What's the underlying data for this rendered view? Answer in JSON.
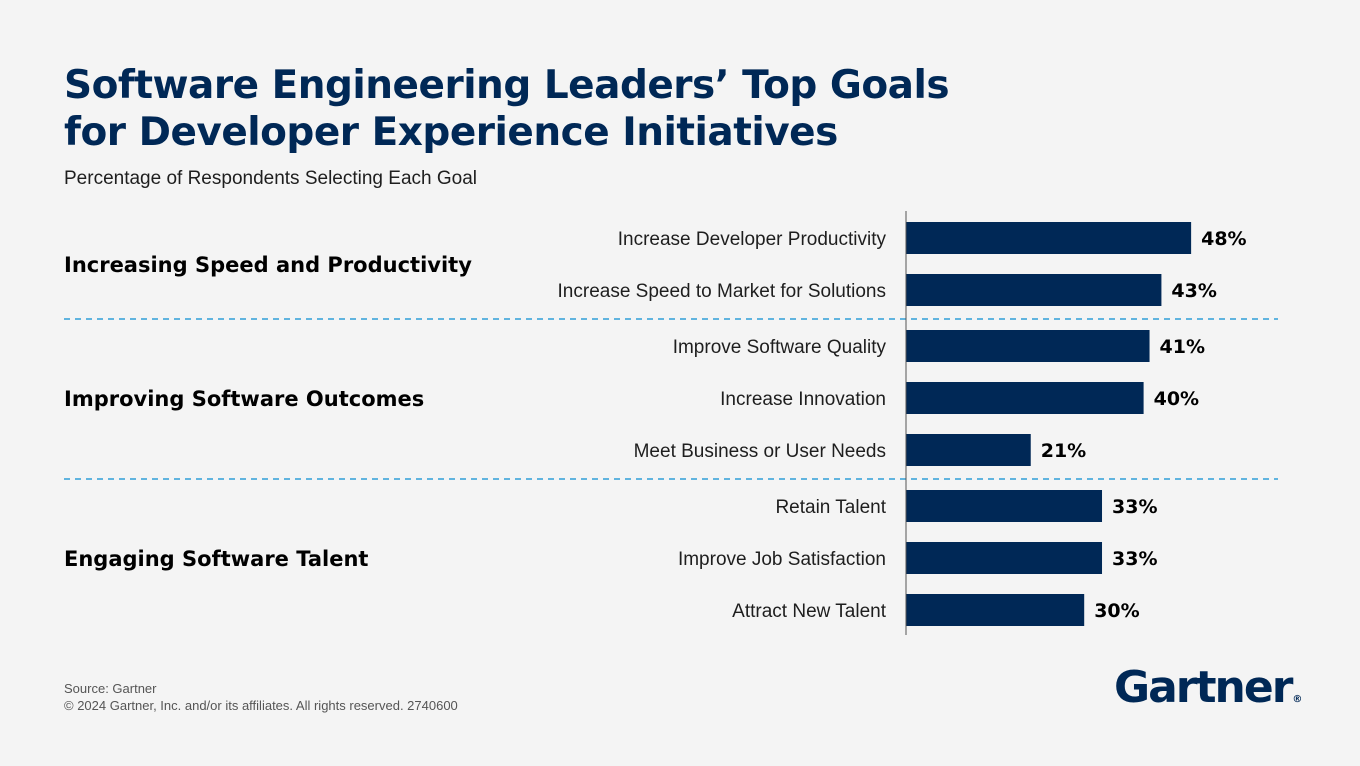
{
  "header": {
    "title_line1": "Software Engineering Leaders’ Top Goals",
    "title_line2": "for Developer Experience Initiatives",
    "subtitle": "Percentage of Respondents Selecting Each Goal"
  },
  "chart_data": {
    "type": "bar",
    "orientation": "horizontal",
    "title": "Software Engineering Leaders’ Top Goals for Developer Experience Initiatives",
    "subtitle": "Percentage of Respondents Selecting Each Goal",
    "value_suffix": "%",
    "xlim": [
      0,
      100
    ],
    "grid": false,
    "groups": [
      {
        "name": "Increasing Speed and Productivity",
        "items": [
          {
            "label": "Increase Developer Productivity",
            "value": 48
          },
          {
            "label": "Increase Speed to Market for Solutions",
            "value": 43
          }
        ]
      },
      {
        "name": "Improving Software Outcomes",
        "items": [
          {
            "label": "Improve Software Quality",
            "value": 41
          },
          {
            "label": "Increase Innovation",
            "value": 40
          },
          {
            "label": "Meet Business or User Needs",
            "value": 21
          }
        ]
      },
      {
        "name": "Engaging Software Talent",
        "items": [
          {
            "label": "Retain Talent",
            "value": 33
          },
          {
            "label": "Improve Job Satisfaction",
            "value": 33
          },
          {
            "label": "Attract New Talent",
            "value": 30
          }
        ]
      }
    ]
  },
  "colors": {
    "bar": "#002856",
    "title": "#002856",
    "divider": "#2f9fd8",
    "axis": "#555555",
    "group_band": "#efefef"
  },
  "footer": {
    "source": "Source: Gartner",
    "copyright": "© 2024 Gartner, Inc. and/or its affiliates. All rights reserved. 2740600"
  },
  "logo": {
    "text": "Gartner",
    "mark": "®"
  }
}
